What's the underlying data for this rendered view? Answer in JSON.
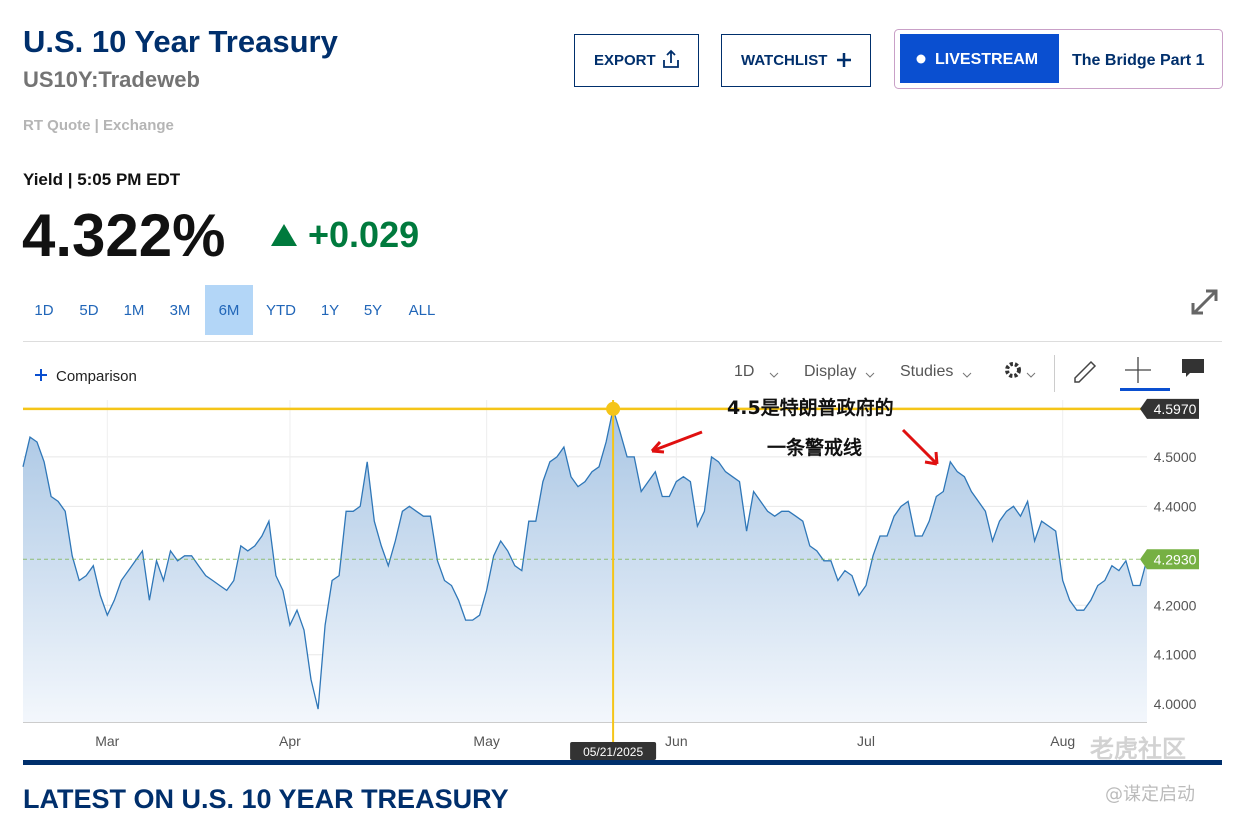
{
  "header": {
    "title": "U.S. 10 Year Treasury",
    "symbol": "US10Y:Tradeweb",
    "quote_source": "RT Quote | Exchange",
    "yield_label": "Yield | 5:05 PM EDT",
    "price": "4.322%",
    "change": "+0.029"
  },
  "buttons": {
    "export": "EXPORT",
    "watchlist": "WATCHLIST",
    "livestream": "LIVESTREAM",
    "show": "The Bridge Part 1"
  },
  "ranges": [
    "1D",
    "5D",
    "1M",
    "3M",
    "6M",
    "YTD",
    "1Y",
    "5Y",
    "ALL"
  ],
  "active_range": "6M",
  "toolbar": {
    "comparison": "Comparison",
    "interval": "1D",
    "display": "Display",
    "studies": "Studies"
  },
  "chart_data": {
    "type": "area",
    "color": "#2f77b8",
    "categories": [
      null,
      null,
      null,
      null,
      null,
      null,
      null,
      null,
      null,
      null,
      null,
      null,
      "Mar",
      null,
      null,
      null,
      null,
      null,
      null,
      null,
      null,
      null,
      null,
      null,
      null,
      null,
      null,
      null,
      null,
      null,
      null,
      null,
      null,
      null,
      null,
      null,
      null,
      null,
      "Apr",
      null,
      null,
      null,
      null,
      null,
      null,
      null,
      null,
      null,
      null,
      null,
      null,
      null,
      null,
      null,
      null,
      null,
      null,
      null,
      null,
      null,
      null,
      null,
      null,
      null,
      null,
      null,
      "May",
      null,
      null,
      null,
      null,
      null,
      null,
      null,
      null,
      null,
      null,
      null,
      null,
      null,
      null,
      null,
      null,
      null,
      null,
      null,
      null,
      null,
      null,
      null,
      null,
      null,
      null,
      "Jun",
      null,
      null,
      null,
      null,
      null,
      null,
      null,
      null,
      null,
      null,
      null,
      null,
      null,
      null,
      null,
      null,
      null,
      null,
      null,
      null,
      null,
      null,
      null,
      null,
      null,
      null,
      "Jul",
      null,
      null,
      null,
      null,
      null,
      null,
      null,
      null,
      null,
      null,
      null,
      null,
      null,
      null,
      null,
      null,
      null,
      null,
      null,
      null,
      null,
      null,
      null,
      null,
      null,
      null,
      null,
      "Aug",
      null,
      null,
      null,
      null,
      null,
      null,
      null,
      null,
      null,
      null,
      null,
      null
    ],
    "values": [
      4.48,
      4.54,
      4.53,
      4.49,
      4.42,
      4.41,
      4.39,
      4.3,
      4.25,
      4.26,
      4.28,
      4.22,
      4.18,
      4.21,
      4.25,
      4.27,
      4.29,
      4.31,
      4.21,
      4.29,
      4.25,
      4.31,
      4.29,
      4.3,
      4.3,
      4.28,
      4.26,
      4.25,
      4.24,
      4.23,
      4.25,
      4.32,
      4.31,
      4.32,
      4.34,
      4.37,
      4.26,
      4.23,
      4.16,
      4.19,
      4.15,
      4.05,
      3.99,
      4.16,
      4.25,
      4.26,
      4.39,
      4.39,
      4.4,
      4.49,
      4.37,
      4.32,
      4.28,
      4.33,
      4.39,
      4.4,
      4.39,
      4.38,
      4.38,
      4.29,
      4.25,
      4.24,
      4.21,
      4.17,
      4.17,
      4.18,
      4.23,
      4.3,
      4.33,
      4.31,
      4.28,
      4.27,
      4.37,
      4.37,
      4.45,
      4.49,
      4.5,
      4.52,
      4.46,
      4.44,
      4.45,
      4.47,
      4.48,
      4.53,
      4.597,
      4.55,
      4.5,
      4.5,
      4.43,
      4.45,
      4.47,
      4.42,
      4.42,
      4.45,
      4.46,
      4.45,
      4.36,
      4.39,
      4.5,
      4.49,
      4.47,
      4.46,
      4.45,
      4.35,
      4.43,
      4.41,
      4.39,
      4.38,
      4.39,
      4.39,
      4.38,
      4.37,
      4.32,
      4.31,
      4.29,
      4.29,
      4.25,
      4.27,
      4.26,
      4.22,
      4.24,
      4.3,
      4.34,
      4.34,
      4.38,
      4.4,
      4.41,
      4.34,
      4.34,
      4.37,
      4.42,
      4.43,
      4.49,
      4.47,
      4.46,
      4.43,
      4.41,
      4.39,
      4.33,
      4.37,
      4.39,
      4.4,
      4.38,
      4.41,
      4.33,
      4.37,
      4.36,
      4.35,
      4.25,
      4.21,
      4.19,
      4.19,
      4.21,
      4.24,
      4.25,
      4.28,
      4.27,
      4.29,
      4.24,
      4.24,
      4.293
    ],
    "ylim": [
      3.964,
      4.615
    ],
    "yticks": [
      {
        "value": 4.0,
        "label": "4.0000"
      },
      {
        "value": 4.1,
        "label": "4.1000"
      },
      {
        "value": 4.2,
        "label": "4.2000"
      },
      {
        "value": 4.4,
        "label": "4.4000"
      },
      {
        "value": 4.5,
        "label": "4.5000"
      }
    ],
    "grid": true,
    "reference_line": {
      "value": 4.597,
      "label": "4.5970",
      "color": "#f5c518"
    },
    "last_value": {
      "value": 4.293,
      "label": "4.2930",
      "color": "#76b043"
    },
    "crosshair_label": "05/21/2025",
    "annotations": [
      "4.5是特朗普政府的",
      "一条警戒线"
    ]
  },
  "section_title": "LATEST ON U.S. 10 YEAR TREASURY",
  "watermark": [
    "老虎社区",
    "@谋定启动"
  ]
}
